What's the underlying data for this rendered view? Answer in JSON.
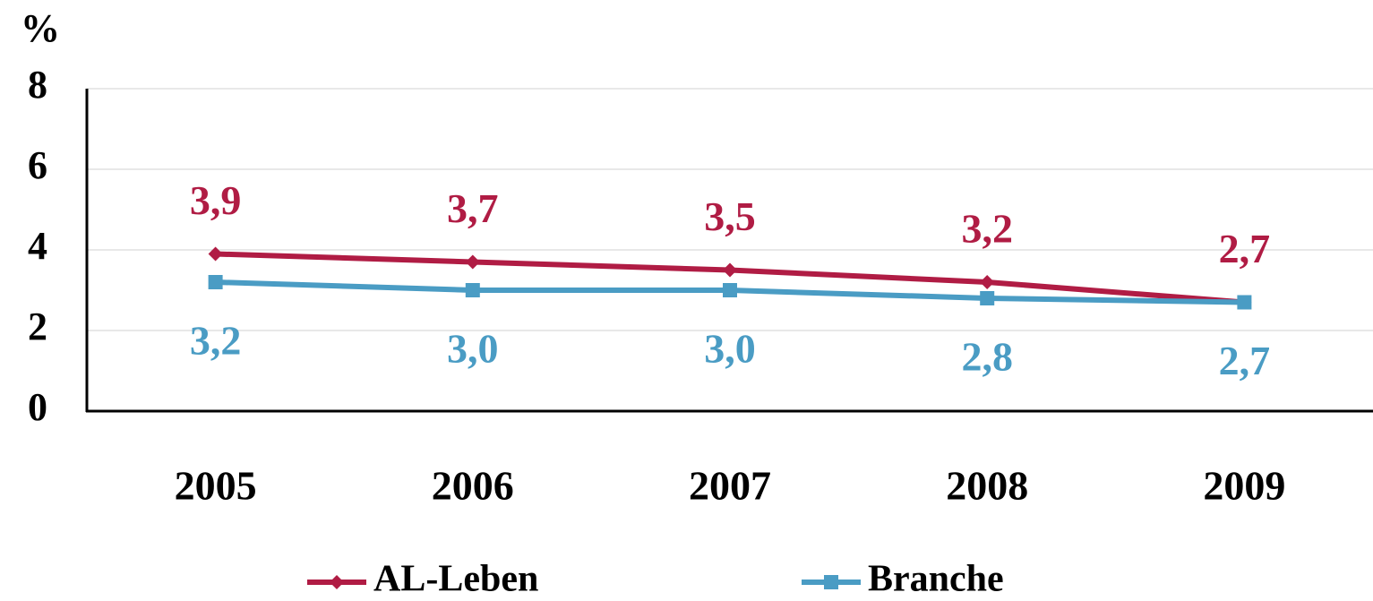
{
  "chart_data": {
    "type": "line",
    "y_axis_label": "%",
    "categories": [
      "2005",
      "2006",
      "2007",
      "2008",
      "2009"
    ],
    "series": [
      {
        "name": "AL-Leben",
        "color": "#b01c44",
        "values": [
          3.9,
          3.7,
          3.5,
          3.2,
          2.7
        ],
        "value_labels": [
          "3,9",
          "3,7",
          "3,5",
          "3,2",
          "2,7"
        ],
        "marker": "diamond"
      },
      {
        "name": "Branche",
        "color": "#4a9cc4",
        "values": [
          3.2,
          3.0,
          3.0,
          2.8,
          2.7
        ],
        "value_labels": [
          "3,2",
          "3,0",
          "3,0",
          "2,8",
          "2,7"
        ],
        "marker": "square"
      }
    ],
    "ylim": [
      0,
      8
    ],
    "yticks": [
      0,
      2,
      4,
      6,
      8
    ],
    "grid": true,
    "legend": "bottom"
  }
}
